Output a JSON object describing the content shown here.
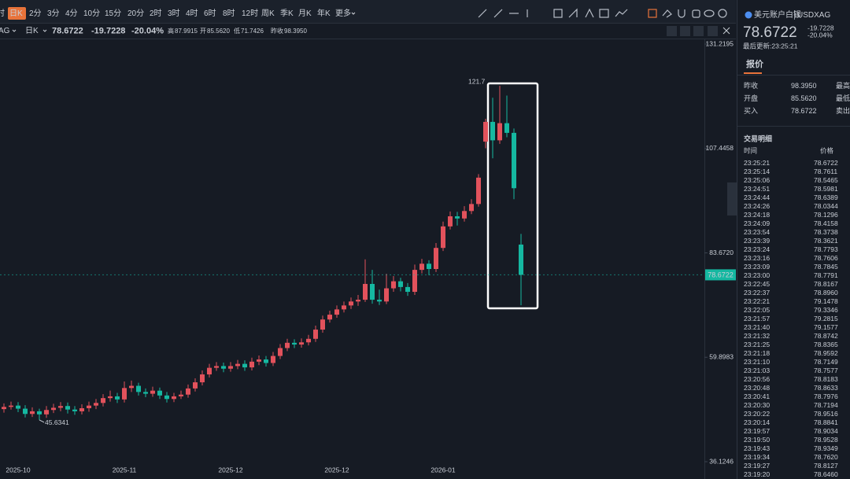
{
  "toolbar": {
    "timeframes": [
      "时",
      "日K",
      "2分",
      "3分",
      "4分",
      "10分",
      "15分",
      "20分",
      "2时",
      "3时",
      "4时",
      "6时",
      "8时",
      "12时",
      "周K",
      "季K",
      "月K",
      "年K",
      "更多"
    ]
  },
  "info_bar": {
    "symbol": "AG",
    "period": "日K",
    "price": "78.6722",
    "change": "-19.7228",
    "change_pct": "-20.04%",
    "stats": [
      {
        "label": "高",
        "value": "87.9915"
      },
      {
        "label": "开",
        "value": "85.5620"
      },
      {
        "label": "低",
        "value": "71.7426"
      },
      {
        "label": "昨收",
        "value": "98.3950"
      }
    ]
  },
  "panel": {
    "name": "美元账户白银",
    "code": "USDXAG",
    "price": "78.6722",
    "change": "-19.7228",
    "change_pct": "-20.04%",
    "updated": "最后更新:23:25:21",
    "tab": "报价",
    "quote_rows": [
      {
        "label": "昨收",
        "value": "98.3950",
        "more": "最高"
      },
      {
        "label": "开盘",
        "value": "85.5620",
        "more": "最低"
      },
      {
        "label": "买入",
        "value": "78.6722",
        "more": "卖出"
      }
    ],
    "trades_title": "交易明细",
    "trades_header": [
      "时间",
      "价格"
    ],
    "trades": [
      [
        "23:25:21",
        "78.6722"
      ],
      [
        "23:25:14",
        "78.7611"
      ],
      [
        "23:25:06",
        "78.5465"
      ],
      [
        "23:24:51",
        "78.5981"
      ],
      [
        "23:24:44",
        "78.6389"
      ],
      [
        "23:24:26",
        "78.0344"
      ],
      [
        "23:24:18",
        "78.1296"
      ],
      [
        "23:24:09",
        "78.4158"
      ],
      [
        "23:23:54",
        "78.3738"
      ],
      [
        "23:23:39",
        "78.3621"
      ],
      [
        "23:23:24",
        "78.7793"
      ],
      [
        "23:23:16",
        "78.7606"
      ],
      [
        "23:23:09",
        "78.7845"
      ],
      [
        "23:23:00",
        "78.7791"
      ],
      [
        "23:22:45",
        "78.8167"
      ],
      [
        "23:22:37",
        "78.8960"
      ],
      [
        "23:22:21",
        "79.1478"
      ],
      [
        "23:22:05",
        "79.3346"
      ],
      [
        "23:21:57",
        "79.2815"
      ],
      [
        "23:21:40",
        "79.1577"
      ],
      [
        "23:21:32",
        "78.8742"
      ],
      [
        "23:21:25",
        "78.8365"
      ],
      [
        "23:21:18",
        "78.9592"
      ],
      [
        "23:21:10",
        "78.7149"
      ],
      [
        "23:21:03",
        "78.7577"
      ],
      [
        "23:20:56",
        "78.8183"
      ],
      [
        "23:20:48",
        "78.8633"
      ],
      [
        "23:20:41",
        "78.7976"
      ],
      [
        "23:20:30",
        "78.7194"
      ],
      [
        "23:20:22",
        "78.9516"
      ],
      [
        "23:20:14",
        "78.8841"
      ],
      [
        "23:19:57",
        "78.9034"
      ],
      [
        "23:19:50",
        "78.9528"
      ],
      [
        "23:19:43",
        "78.9349"
      ],
      [
        "23:19:34",
        "78.7620"
      ],
      [
        "23:19:27",
        "78.8127"
      ],
      [
        "23:19:20",
        "78.6460"
      ]
    ]
  },
  "chart_data": {
    "type": "candlestick",
    "up_color": "#e2525c",
    "down_color": "#15b8a1",
    "categories": [
      null,
      null,
      "2025-10",
      null,
      null,
      null,
      null,
      null,
      null,
      null,
      null,
      null,
      null,
      null,
      null,
      null,
      null,
      "2025-11",
      null,
      null,
      null,
      null,
      null,
      null,
      null,
      null,
      null,
      null,
      null,
      null,
      null,
      null,
      "2025-12",
      null,
      null,
      null,
      null,
      null,
      null,
      null,
      null,
      null,
      null,
      null,
      null,
      null,
      null,
      "2025-12",
      null,
      null,
      null,
      null,
      null,
      null,
      null,
      null,
      null,
      null,
      null,
      null,
      null,
      null,
      "2026-01",
      null,
      null,
      null,
      null,
      null,
      null,
      null,
      null,
      null,
      null,
      null
    ],
    "open": [
      48.1,
      48.6,
      48.9,
      48.2,
      47.0,
      47.6,
      46.9,
      47.9,
      48.4,
      48.8,
      48.0,
      47.6,
      48.3,
      48.9,
      49.5,
      50.6,
      51.0,
      50.3,
      52.9,
      53.4,
      52.0,
      51.6,
      52.3,
      51.2,
      50.4,
      51.0,
      51.4,
      52.8,
      54.2,
      56.0,
      57.5,
      57.9,
      57.3,
      57.9,
      58.4,
      57.6,
      58.9,
      59.4,
      58.6,
      60.2,
      62.0,
      63.2,
      62.8,
      63.3,
      64.1,
      66.2,
      68.5,
      69.6,
      70.8,
      71.7,
      72.6,
      73.0,
      76.6,
      73.0,
      72.6,
      75.6,
      77.2,
      75.9,
      74.8,
      79.8,
      81.2,
      80.0,
      84.8,
      89.7,
      92.0,
      91.5,
      93.2,
      94.8,
      109.0,
      113.5,
      109.3,
      113.2,
      111.0,
      85.562
    ],
    "high": [
      49.4,
      49.8,
      49.7,
      49.0,
      48.5,
      48.2,
      48.8,
      49.3,
      49.7,
      49.6,
      48.8,
      49.2,
      49.8,
      50.4,
      51.5,
      52.3,
      51.8,
      54.4,
      54.6,
      54.1,
      52.8,
      53.2,
      53.0,
      52.0,
      51.8,
      52.3,
      53.7,
      55.1,
      56.9,
      58.4,
      58.8,
      58.7,
      58.8,
      59.3,
      59.2,
      59.8,
      60.3,
      60.2,
      61.1,
      62.9,
      64.1,
      64.0,
      64.2,
      65.0,
      67.1,
      69.4,
      70.5,
      71.7,
      72.6,
      73.5,
      74.1,
      82.2,
      79.8,
      75.3,
      78.9,
      78.4,
      78.0,
      76.8,
      81.0,
      82.3,
      82.0,
      85.9,
      90.8,
      93.1,
      93.0,
      94.3,
      95.9,
      101.6,
      114.2,
      119.0,
      121.7,
      119.5,
      112.0,
      87.9915
    ],
    "low": [
      47.3,
      48.0,
      47.4,
      46.2,
      46.3,
      45.6341,
      46.1,
      47.2,
      47.6,
      47.1,
      46.8,
      46.9,
      47.5,
      48.1,
      48.7,
      49.8,
      49.5,
      49.6,
      52.0,
      51.2,
      50.8,
      50.9,
      50.4,
      49.6,
      49.7,
      50.4,
      50.7,
      52.1,
      53.5,
      55.3,
      56.8,
      56.5,
      56.6,
      57.2,
      56.8,
      56.9,
      58.1,
      57.8,
      57.9,
      59.5,
      61.3,
      62.0,
      62.1,
      62.6,
      63.4,
      65.5,
      67.8,
      68.9,
      70.1,
      70.9,
      71.6,
      72.5,
      72.1,
      71.8,
      72.0,
      74.8,
      74.9,
      73.9,
      74.1,
      79.0,
      78.6,
      79.3,
      84.1,
      89.0,
      89.9,
      90.8,
      92.5,
      94.2,
      107.5,
      105.2,
      108.5,
      110.0,
      95.9,
      71.7426
    ],
    "close": [
      48.6,
      48.9,
      48.2,
      47.0,
      47.6,
      46.9,
      47.9,
      48.4,
      48.8,
      48.0,
      47.6,
      48.3,
      48.9,
      49.5,
      50.6,
      51.0,
      50.3,
      52.9,
      53.4,
      52.0,
      51.6,
      52.3,
      51.2,
      50.4,
      51.0,
      51.4,
      52.8,
      54.2,
      56.0,
      57.5,
      57.9,
      57.3,
      57.9,
      58.4,
      57.6,
      58.9,
      59.4,
      58.6,
      60.2,
      62.0,
      63.2,
      62.8,
      63.3,
      64.1,
      66.2,
      68.5,
      69.6,
      70.8,
      71.7,
      72.6,
      73.0,
      76.6,
      73.0,
      72.6,
      75.6,
      77.2,
      75.9,
      74.8,
      79.8,
      81.2,
      80.0,
      84.8,
      89.7,
      92.0,
      91.5,
      93.2,
      94.8,
      100.8,
      113.5,
      109.3,
      113.2,
      111.0,
      98.395,
      78.6722
    ],
    "ylim": [
      36.1246,
      131.2195
    ],
    "yticks": [
      131.2195,
      107.4458,
      {
        "value": 83.672,
        "label": "83.6720"
      },
      59.8983,
      36.1246
    ],
    "annotations": [
      {
        "index": 5,
        "text": "45.6341"
      },
      {
        "index": 70,
        "text": "121.7"
      }
    ]
  }
}
